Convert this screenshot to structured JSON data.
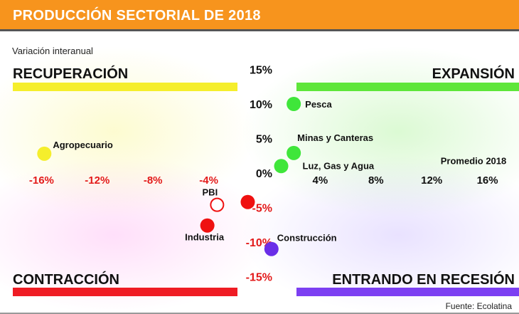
{
  "header": {
    "title": "PRODUCCIÓN SECTORIAL DE 2018"
  },
  "subtitle": "Variación interanual",
  "source": "Fuente: Ecolatina",
  "chart_data": {
    "type": "scatter",
    "title": "PRODUCCIÓN SECTORIAL DE 2018",
    "subtitle": "Variación interanual",
    "xlim": [
      -18,
      18
    ],
    "ylim": [
      -15,
      15
    ],
    "x_ticks": [
      {
        "value": -16,
        "label": "-16%"
      },
      {
        "value": -12,
        "label": "-12%"
      },
      {
        "value": -8,
        "label": "-8%"
      },
      {
        "value": -4,
        "label": "-4%"
      },
      {
        "value": 4,
        "label": "4%"
      },
      {
        "value": 8,
        "label": "8%"
      },
      {
        "value": 12,
        "label": "12%"
      },
      {
        "value": 16,
        "label": "16%"
      }
    ],
    "y_ticks": [
      {
        "value": 15,
        "label": "15%"
      },
      {
        "value": 10,
        "label": "10%"
      },
      {
        "value": 5,
        "label": "5%"
      },
      {
        "value": 0,
        "label": "0%"
      },
      {
        "value": -5,
        "label": "-5%"
      },
      {
        "value": -10,
        "label": "-10%"
      },
      {
        "value": -15,
        "label": "-15%"
      }
    ],
    "quadrants": [
      {
        "name": "RECUPERACIÓN",
        "position": "top-left",
        "color": "#f5ee2c"
      },
      {
        "name": "EXPANSIÓN",
        "position": "top-right",
        "color": "#5ee63a"
      },
      {
        "name": "CONTRACCIÓN",
        "position": "bottom-left",
        "color": "#ef1c24"
      },
      {
        "name": "ENTRANDO EN RECESIÓN",
        "position": "bottom-right",
        "color": "#7c3ff2"
      }
    ],
    "points": [
      {
        "label": "Agropecuario",
        "x": -15.8,
        "y": 2.8,
        "color": "#f5ee2c",
        "filled": true
      },
      {
        "label": "Pesca",
        "x": 2.1,
        "y": 10.0,
        "color": "#3fe63a",
        "filled": true
      },
      {
        "label": "Minas y Canteras",
        "x": 2.1,
        "y": 2.9,
        "color": "#3fe63a",
        "filled": true
      },
      {
        "label": "Luz, Gas y Agua",
        "x": 1.2,
        "y": 1.0,
        "color": "#3fe63a",
        "filled": true
      },
      {
        "label": "",
        "x": -1.2,
        "y": -4.2,
        "color": "#ef1111",
        "filled": true
      },
      {
        "label": "PBI",
        "x": -3.4,
        "y": -4.6,
        "color": "#ef1111",
        "filled": false
      },
      {
        "label": "Industria",
        "x": -4.1,
        "y": -7.6,
        "color": "#ef1111",
        "filled": true
      },
      {
        "label": "Construcción",
        "x": 0.5,
        "y": -11.0,
        "color": "#6a2ee8",
        "filled": true
      }
    ],
    "annotations": [
      {
        "text": "Promedio 2018",
        "x": 15.0,
        "y": 1.0
      }
    ]
  }
}
